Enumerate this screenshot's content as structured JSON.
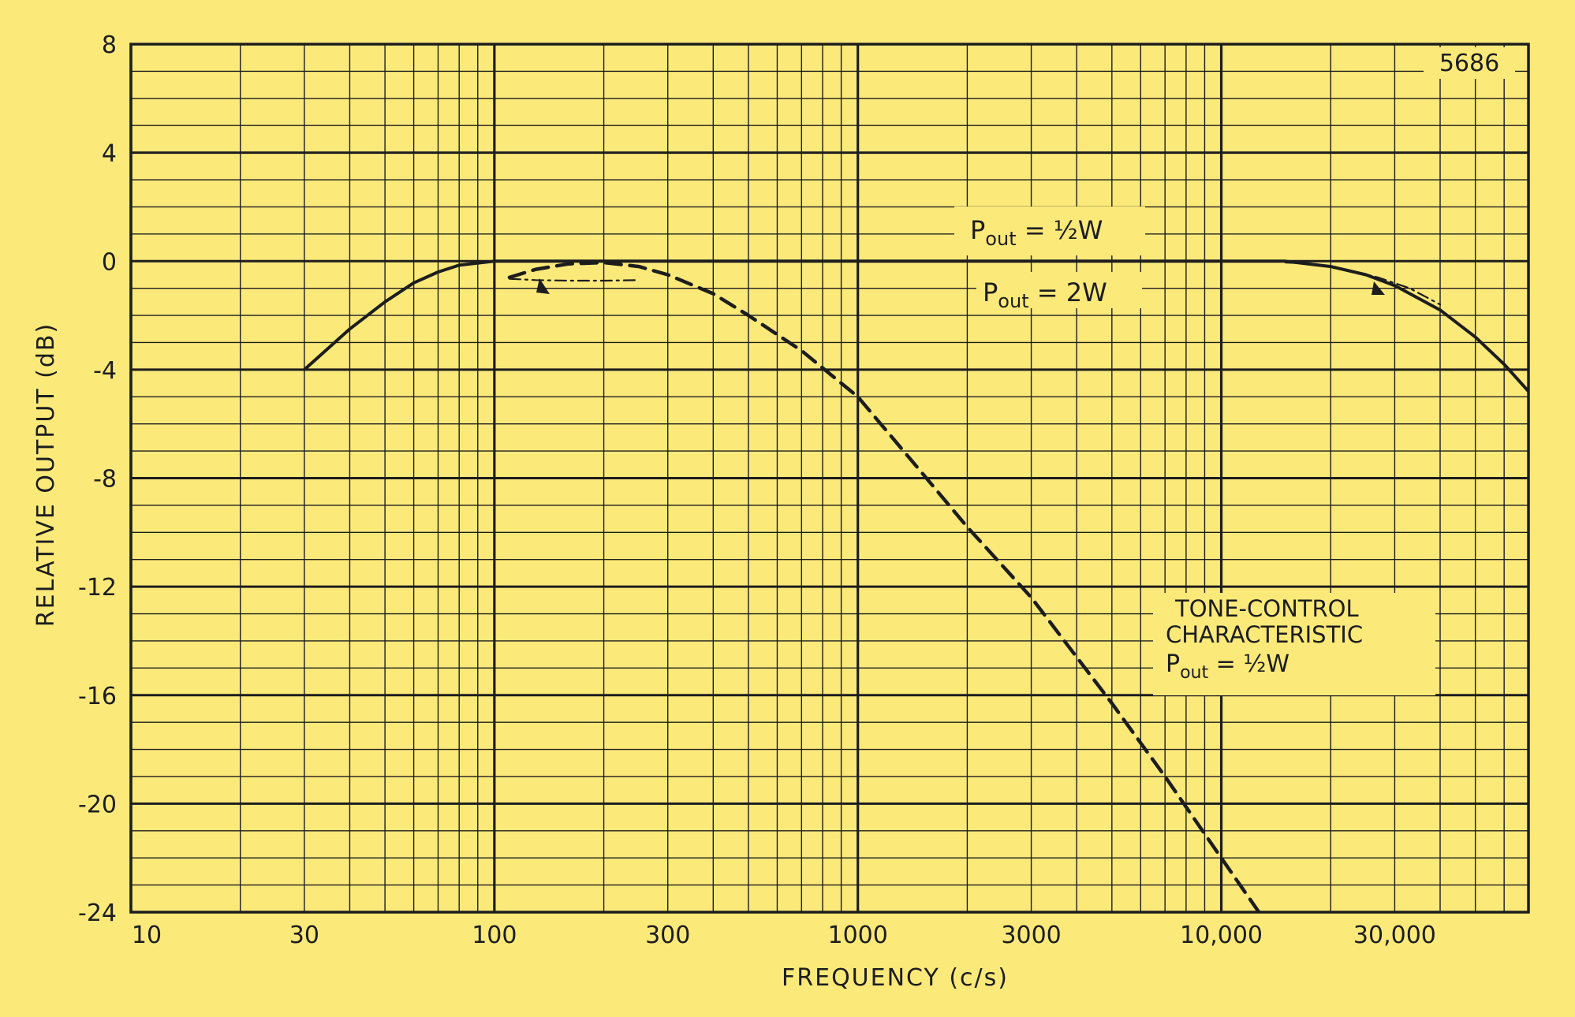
{
  "colors": {
    "background": "#fbe97a",
    "ink": "#1d1d1d"
  },
  "chart_data": {
    "type": "line",
    "title": "",
    "figure_number": "5686",
    "xlabel": "FREQUENCY (c/s)",
    "ylabel": "RELATIVE OUTPUT (dB)",
    "x_scale": "log",
    "xlim": [
      10,
      70000
    ],
    "ylim": [
      -24,
      8
    ],
    "x_ticks": [
      {
        "value": 10,
        "label": "10"
      },
      {
        "value": 30,
        "label": "30"
      },
      {
        "value": 100,
        "label": "100"
      },
      {
        "value": 300,
        "label": "300"
      },
      {
        "value": 1000,
        "label": "1000"
      },
      {
        "value": 3000,
        "label": "3000"
      },
      {
        "value": 10000,
        "label": "10,000"
      },
      {
        "value": 30000,
        "label": "30,000"
      }
    ],
    "y_ticks": [
      {
        "value": 8,
        "label": "8"
      },
      {
        "value": 4,
        "label": "4"
      },
      {
        "value": 0,
        "label": "0"
      },
      {
        "value": -4,
        "label": "-4"
      },
      {
        "value": -8,
        "label": "-8"
      },
      {
        "value": -12,
        "label": "-12"
      },
      {
        "value": -16,
        "label": "-16"
      },
      {
        "value": -20,
        "label": "-20"
      },
      {
        "value": -24,
        "label": "-24"
      }
    ],
    "grid": true,
    "series": [
      {
        "style": "solid",
        "points": [
          [
            30,
            -4
          ],
          [
            40,
            -2.5
          ],
          [
            50,
            -1.5
          ],
          [
            60,
            -0.8
          ],
          [
            70,
            -0.4
          ],
          [
            80,
            -0.15
          ],
          [
            100,
            0
          ],
          [
            1000,
            0
          ],
          [
            10000,
            0
          ],
          [
            15000,
            0
          ],
          [
            20000,
            -0.2
          ],
          [
            25000,
            -0.5
          ],
          [
            30000,
            -0.9
          ],
          [
            40000,
            -1.8
          ],
          [
            50000,
            -2.8
          ],
          [
            60000,
            -3.8
          ],
          [
            70000,
            -4.8
          ]
        ]
      },
      {
        "style": "dashed",
        "points": [
          [
            110,
            -0.6
          ],
          [
            130,
            -0.3
          ],
          [
            160,
            -0.1
          ],
          [
            200,
            -0.05
          ],
          [
            250,
            -0.2
          ],
          [
            300,
            -0.5
          ],
          [
            400,
            -1.2
          ],
          [
            500,
            -2
          ],
          [
            700,
            -3.3
          ],
          [
            1000,
            -5
          ],
          [
            1500,
            -7.8
          ],
          [
            2000,
            -9.8
          ],
          [
            3000,
            -12.4
          ],
          [
            5000,
            -16.3
          ],
          [
            7000,
            -19
          ],
          [
            10000,
            -22
          ],
          [
            13000,
            -24.2
          ]
        ]
      },
      {
        "style": "dash-dot",
        "points": [
          [
            110,
            -0.65
          ],
          [
            130,
            -0.7
          ],
          [
            160,
            -0.72
          ],
          [
            200,
            -0.72
          ],
          [
            250,
            -0.7
          ]
        ]
      },
      {
        "style": "dash-dot",
        "points": [
          [
            15000,
            -0.05
          ],
          [
            18000,
            -0.1
          ],
          [
            22000,
            -0.3
          ],
          [
            27000,
            -0.6
          ],
          [
            33000,
            -1
          ],
          [
            40000,
            -1.6
          ]
        ]
      }
    ],
    "annotations": [
      {
        "text_main": "P",
        "text_sub": "out",
        "text_rest": " = ½W",
        "label": "Pout = ½W"
      },
      {
        "text_main": "P",
        "text_sub": "out",
        "text_rest": " = 2W",
        "label": "Pout = 2W"
      },
      {
        "lines": [
          "TONE-CONTROL",
          "CHARACTERISTIC"
        ],
        "text_main": "P",
        "text_sub": "out",
        "text_rest": " = ½W"
      }
    ]
  }
}
